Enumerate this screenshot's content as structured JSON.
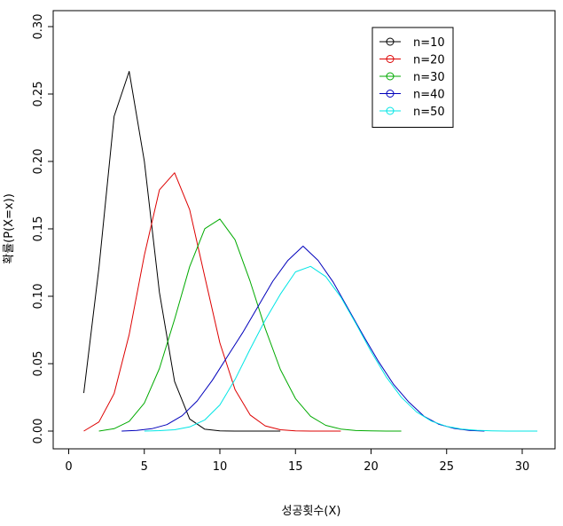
{
  "chart_data": {
    "type": "line",
    "xlabel": "성공횟수(X)",
    "ylabel": "확률(P(X=x))",
    "xlim": [
      0,
      31
    ],
    "ylim": [
      0,
      0.3
    ],
    "xticks": [
      0,
      5,
      10,
      15,
      20,
      25,
      30
    ],
    "yticks": [
      0.0,
      0.05,
      0.1,
      0.15,
      0.2,
      0.25,
      0.3
    ],
    "xtick_labels": [
      "0",
      "5",
      "10",
      "15",
      "20",
      "25",
      "30"
    ],
    "ytick_labels": [
      "0.00",
      "0.05",
      "0.10",
      "0.15",
      "0.20",
      "0.25",
      "0.30"
    ],
    "grid": false,
    "legend_position": "top-right",
    "series": [
      {
        "name": "n=10",
        "color": "#000000",
        "x": [
          1,
          2,
          3,
          4,
          5,
          6,
          7,
          8,
          9,
          10,
          11,
          12,
          13,
          14
        ],
        "y": [
          0.0282,
          0.1211,
          0.2335,
          0.2668,
          0.2001,
          0.1029,
          0.0368,
          0.009,
          0.0014,
          0.0001,
          0.0,
          0.0,
          0.0,
          0.0
        ]
      },
      {
        "name": "n=20",
        "color": "#dd0000",
        "x": [
          1,
          2,
          3,
          4,
          5,
          6,
          7,
          8,
          9,
          10,
          11,
          12,
          13,
          14,
          15,
          16,
          17,
          18
        ],
        "y": [
          0.0,
          0.0068,
          0.0278,
          0.0716,
          0.1304,
          0.1789,
          0.1916,
          0.1643,
          0.1144,
          0.0654,
          0.0308,
          0.012,
          0.0039,
          0.001,
          0.0002,
          0.0,
          0.0,
          0.0
        ]
      },
      {
        "name": "n=30",
        "color": "#00aa00",
        "x": [
          2,
          3,
          4,
          5,
          6,
          7,
          8,
          9,
          10,
          11,
          12,
          13,
          14,
          15,
          16,
          17,
          18,
          19,
          20,
          21,
          22
        ],
        "y": [
          0.0,
          0.0018,
          0.0072,
          0.0208,
          0.0464,
          0.0829,
          0.1219,
          0.1501,
          0.1573,
          0.1419,
          0.1111,
          0.0762,
          0.0457,
          0.0241,
          0.011,
          0.0043,
          0.0015,
          0.0004,
          0.0001,
          0.0,
          0.0
        ]
      },
      {
        "name": "n=40",
        "color": "#0000bb",
        "x": [
          3.5,
          4.5,
          5.5,
          6.5,
          7.5,
          8.5,
          9.5,
          10.5,
          11.5,
          12.5,
          13.5,
          14.5,
          15.5,
          16.5,
          17.5,
          18.5,
          19.5,
          20.5,
          21.5,
          22.5,
          23.5,
          24.5,
          25.5,
          26.5,
          27.5
        ],
        "y": [
          0.0,
          0.0005,
          0.0018,
          0.0048,
          0.0114,
          0.0224,
          0.0377,
          0.0553,
          0.0729,
          0.092,
          0.1112,
          0.1266,
          0.1372,
          0.1266,
          0.1104,
          0.0905,
          0.0705,
          0.0515,
          0.0345,
          0.0215,
          0.011,
          0.005,
          0.002,
          0.0005,
          0.0
        ]
      },
      {
        "name": "n=50",
        "color": "#00e5e5",
        "x": [
          5,
          6,
          7,
          8,
          9,
          10,
          11,
          12,
          13,
          14,
          15,
          16,
          17,
          18,
          19,
          20,
          21,
          22,
          23,
          24,
          25,
          26,
          27,
          28,
          29,
          30,
          31
        ],
        "y": [
          0.0,
          0.0003,
          0.001,
          0.0031,
          0.0083,
          0.0194,
          0.0383,
          0.0608,
          0.0823,
          0.1015,
          0.1181,
          0.1222,
          0.1146,
          0.0994,
          0.0798,
          0.059,
          0.0402,
          0.0251,
          0.0143,
          0.0074,
          0.0035,
          0.0015,
          0.0006,
          0.0002,
          0.0,
          0.0,
          0.0
        ]
      }
    ]
  }
}
